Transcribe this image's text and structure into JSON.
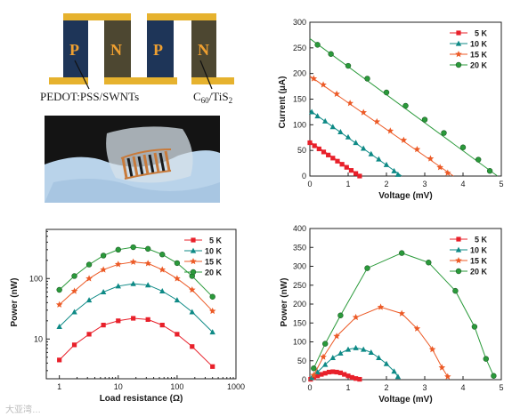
{
  "schematic": {
    "leg_labels": [
      "P",
      "N",
      "P",
      "N"
    ],
    "label_left": "PEDOT:PSS/SWNTs",
    "label_right_main": "C",
    "label_right_sub": "60",
    "label_right_tail": "/TiS",
    "label_right_sub2": "2",
    "colors": {
      "p_leg": "#1e3558",
      "n_leg": "#4d4731",
      "electrode": "#e6b22e",
      "letter": "#f0a030"
    }
  },
  "watermark": "大亚湾…",
  "colors": {
    "k5": "#e8202a",
    "k10": "#0e8a86",
    "k15": "#ec5a26",
    "k20": "#2a9a3a"
  },
  "chart_data": [
    {
      "id": "current",
      "type": "scatter",
      "xlabel": "Voltage (mV)",
      "ylabel": "Current (μA)",
      "xlim": [
        0,
        5
      ],
      "ylim": [
        0,
        300
      ],
      "xticks": [
        0,
        1,
        2,
        3,
        4,
        5
      ],
      "yticks": [
        0,
        50,
        100,
        150,
        200,
        250,
        300
      ],
      "legend_position": "top-right",
      "series": [
        {
          "name": "5 K",
          "marker": "square",
          "color": "#e8202a",
          "x": [
            0.0,
            0.12,
            0.24,
            0.36,
            0.48,
            0.6,
            0.72,
            0.84,
            0.96,
            1.08,
            1.2,
            1.3
          ],
          "y": [
            65,
            59,
            53,
            47,
            41,
            35,
            29,
            23,
            17,
            11,
            5,
            0
          ],
          "fit": [
            [
              0,
              67
            ],
            [
              1.32,
              0
            ]
          ]
        },
        {
          "name": "10 K",
          "marker": "triangle",
          "color": "#0e8a86",
          "x": [
            0.05,
            0.2,
            0.4,
            0.6,
            0.8,
            1.0,
            1.2,
            1.4,
            1.6,
            1.8,
            2.0,
            2.2,
            2.3
          ],
          "y": [
            125,
            117,
            107,
            96,
            86,
            76,
            65,
            54,
            43,
            33,
            22,
            10,
            3
          ],
          "fit": [
            [
              0,
              128
            ],
            [
              2.4,
              0
            ]
          ]
        },
        {
          "name": "15 K",
          "marker": "star",
          "color": "#ec5a26",
          "x": [
            0.1,
            0.35,
            0.7,
            1.05,
            1.4,
            1.75,
            2.1,
            2.45,
            2.8,
            3.15,
            3.4,
            3.6
          ],
          "y": [
            190,
            178,
            160,
            142,
            124,
            106,
            88,
            70,
            52,
            34,
            17,
            6
          ],
          "fit": [
            [
              0,
              195
            ],
            [
              3.75,
              0
            ]
          ]
        },
        {
          "name": "20 K",
          "marker": "circle",
          "color": "#2a9a3a",
          "x": [
            0.2,
            0.55,
            1.0,
            1.5,
            2.0,
            2.5,
            3.0,
            3.5,
            4.0,
            4.4,
            4.7
          ],
          "y": [
            256,
            238,
            215,
            190,
            163,
            137,
            110,
            84,
            56,
            32,
            10
          ],
          "fit": [
            [
              0,
              268
            ],
            [
              4.9,
              0
            ]
          ]
        }
      ]
    },
    {
      "id": "power_load",
      "type": "line",
      "xlabel": "Load resistance (Ω)",
      "ylabel": "Power (nW)",
      "xscale": "log",
      "yscale": "log",
      "xlim": [
        0.6,
        1000
      ],
      "ylim": [
        2.2,
        650
      ],
      "xticks": [
        1,
        10,
        100,
        1000
      ],
      "yticks": [
        10,
        100
      ],
      "legend_position": "top-right",
      "series": [
        {
          "name": "5 K",
          "marker": "square",
          "color": "#e8202a",
          "x": [
            1,
            1.8,
            3.2,
            5.6,
            10,
            18,
            32,
            56,
            100,
            180,
            400
          ],
          "y": [
            4.5,
            8,
            12,
            17,
            20,
            22,
            21,
            17,
            12,
            7.5,
            3.5
          ]
        },
        {
          "name": "10 K",
          "marker": "triangle",
          "color": "#0e8a86",
          "x": [
            1,
            1.8,
            3.2,
            5.6,
            10,
            18,
            32,
            56,
            100,
            180,
            400
          ],
          "y": [
            16,
            28,
            44,
            60,
            75,
            82,
            78,
            62,
            44,
            28,
            13
          ]
        },
        {
          "name": "15 K",
          "marker": "star",
          "color": "#ec5a26",
          "x": [
            1,
            1.8,
            3.2,
            5.6,
            10,
            18,
            32,
            56,
            100,
            180,
            400
          ],
          "y": [
            37,
            62,
            100,
            140,
            172,
            188,
            178,
            140,
            100,
            65,
            29
          ]
        },
        {
          "name": "20 K",
          "marker": "circle",
          "color": "#2a9a3a",
          "x": [
            1,
            1.8,
            3.2,
            5.6,
            10,
            18,
            32,
            56,
            100,
            180,
            400
          ],
          "y": [
            65,
            110,
            170,
            240,
            300,
            330,
            310,
            250,
            180,
            110,
            50
          ]
        }
      ]
    },
    {
      "id": "power_voltage",
      "type": "line",
      "xlabel": "Voltage (mV)",
      "ylabel": "Power (nW)",
      "xlim": [
        0,
        5
      ],
      "ylim": [
        0,
        400
      ],
      "xticks": [
        0,
        1,
        2,
        3,
        4,
        5
      ],
      "yticks": [
        0,
        50,
        100,
        150,
        200,
        250,
        300,
        350,
        400
      ],
      "legend_position": "top-right",
      "series": [
        {
          "name": "5 K",
          "marker": "square",
          "color": "#e8202a",
          "x": [
            0.02,
            0.1,
            0.2,
            0.3,
            0.4,
            0.5,
            0.6,
            0.7,
            0.8,
            0.9,
            1.0,
            1.1,
            1.2,
            1.3
          ],
          "y": [
            1,
            5,
            10,
            14,
            17,
            20,
            21,
            20,
            18,
            14,
            10,
            6,
            3,
            1
          ]
        },
        {
          "name": "10 K",
          "marker": "triangle",
          "color": "#0e8a86",
          "x": [
            0.05,
            0.2,
            0.4,
            0.6,
            0.8,
            1.0,
            1.2,
            1.4,
            1.6,
            1.8,
            2.0,
            2.2,
            2.3
          ],
          "y": [
            5,
            20,
            40,
            58,
            70,
            80,
            84,
            80,
            72,
            58,
            42,
            22,
            8
          ]
        },
        {
          "name": "15 K",
          "marker": "star",
          "color": "#ec5a26",
          "x": [
            0.1,
            0.35,
            0.7,
            1.2,
            1.85,
            2.4,
            2.8,
            3.2,
            3.45,
            3.6
          ],
          "y": [
            12,
            60,
            115,
            165,
            192,
            175,
            135,
            80,
            32,
            8
          ]
        },
        {
          "name": "20 K",
          "marker": "circle",
          "color": "#2a9a3a",
          "x": [
            0.1,
            0.4,
            0.8,
            1.5,
            2.4,
            3.1,
            3.8,
            4.3,
            4.6,
            4.8
          ],
          "y": [
            30,
            95,
            170,
            295,
            335,
            310,
            235,
            140,
            55,
            10
          ]
        }
      ]
    }
  ]
}
